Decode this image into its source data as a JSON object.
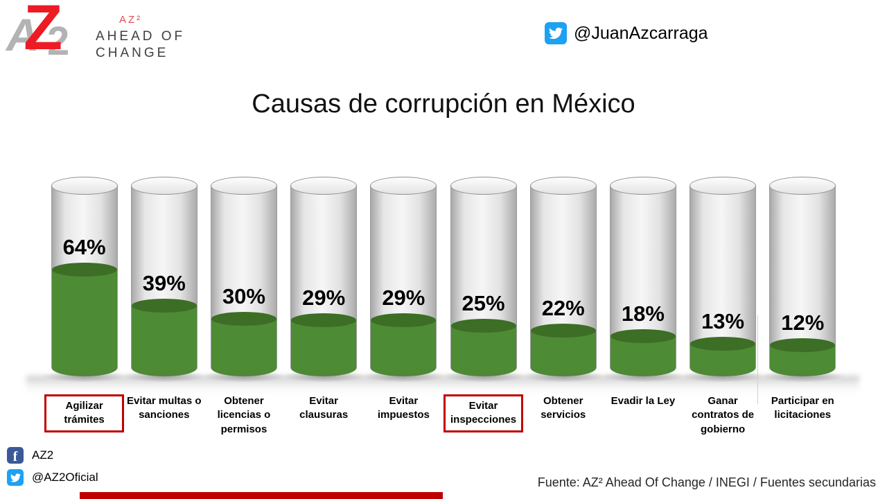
{
  "header": {
    "logo": {
      "monogram_letters": [
        "A",
        "Z",
        "2"
      ],
      "brand_short": "AZ²",
      "brand_line1": "AHEAD OF",
      "brand_line2": "CHANGE"
    },
    "twitter_handle": "@JuanAzcarraga"
  },
  "title": "Causas de corrupción en México",
  "chart_data": {
    "type": "bar",
    "title": "Causas de corrupción en México",
    "categories": [
      "Agilizar trámites",
      "Evitar multas o sanciones",
      "Obtener licencias o permisos",
      "Evitar clausuras",
      "Evitar impuestos",
      "Evitar inspecciones",
      "Obtener servicios",
      "Evadir la Ley",
      "Ganar contratos de gobierno",
      "Participar en licitaciones"
    ],
    "values": [
      64,
      39,
      30,
      29,
      29,
      25,
      22,
      18,
      13,
      12
    ],
    "value_labels": [
      "64%",
      "39%",
      "30%",
      "29%",
      "29%",
      "25%",
      "22%",
      "18%",
      "13%",
      "12%"
    ],
    "highlight_indexes": [
      0,
      5
    ],
    "unit": "%",
    "ylim": [
      0,
      100
    ],
    "xlabel": "",
    "ylabel": "",
    "bar_color": "#4e8b35",
    "bar_top_color": "#3c6e25",
    "tube_color": "#ededed",
    "highlight_box_color": "#c00000",
    "legend_position": "none",
    "grid": false
  },
  "footer": {
    "facebook_label": "AZ2",
    "twitter_label": "@AZ2Oficial",
    "source": "Fuente: AZ² Ahead Of Change / INEGI / Fuentes secundarias"
  },
  "colors": {
    "accent_red": "#c00000",
    "logo_red": "#ed1c24",
    "logo_gray": "#b3b3b3",
    "twitter_blue": "#1da1f2",
    "facebook_blue": "#3b5998"
  }
}
